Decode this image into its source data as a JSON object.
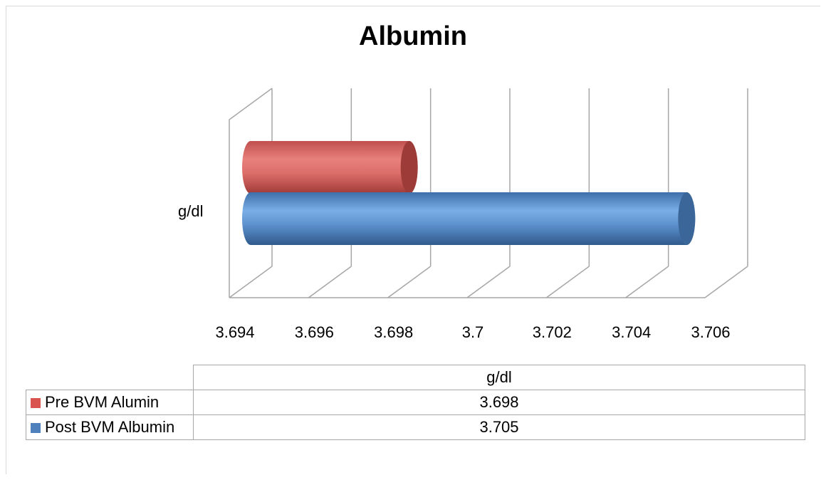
{
  "chart_data": {
    "type": "bar",
    "title": "Albumin",
    "categories": [
      "g/dl"
    ],
    "series": [
      {
        "name": "Pre BVM Alumin",
        "values": [
          3.698
        ],
        "color": "#d9534f"
      },
      {
        "name": "Post BVM Albumin",
        "values": [
          3.705
        ],
        "color": "#4f81bd"
      }
    ],
    "xlim": [
      3.694,
      3.706
    ],
    "ticks": [
      "3.694",
      "3.696",
      "3.698",
      "3.7",
      "3.702",
      "3.704",
      "3.706"
    ],
    "orientation": "horizontal",
    "style": "3d-cylinder",
    "grid": true,
    "data_table": {
      "header": "g/dl",
      "rows": [
        {
          "label": "Pre BVM Alumin",
          "value": "3.698"
        },
        {
          "label": "Post BVM Albumin",
          "value": "3.705"
        }
      ]
    }
  }
}
